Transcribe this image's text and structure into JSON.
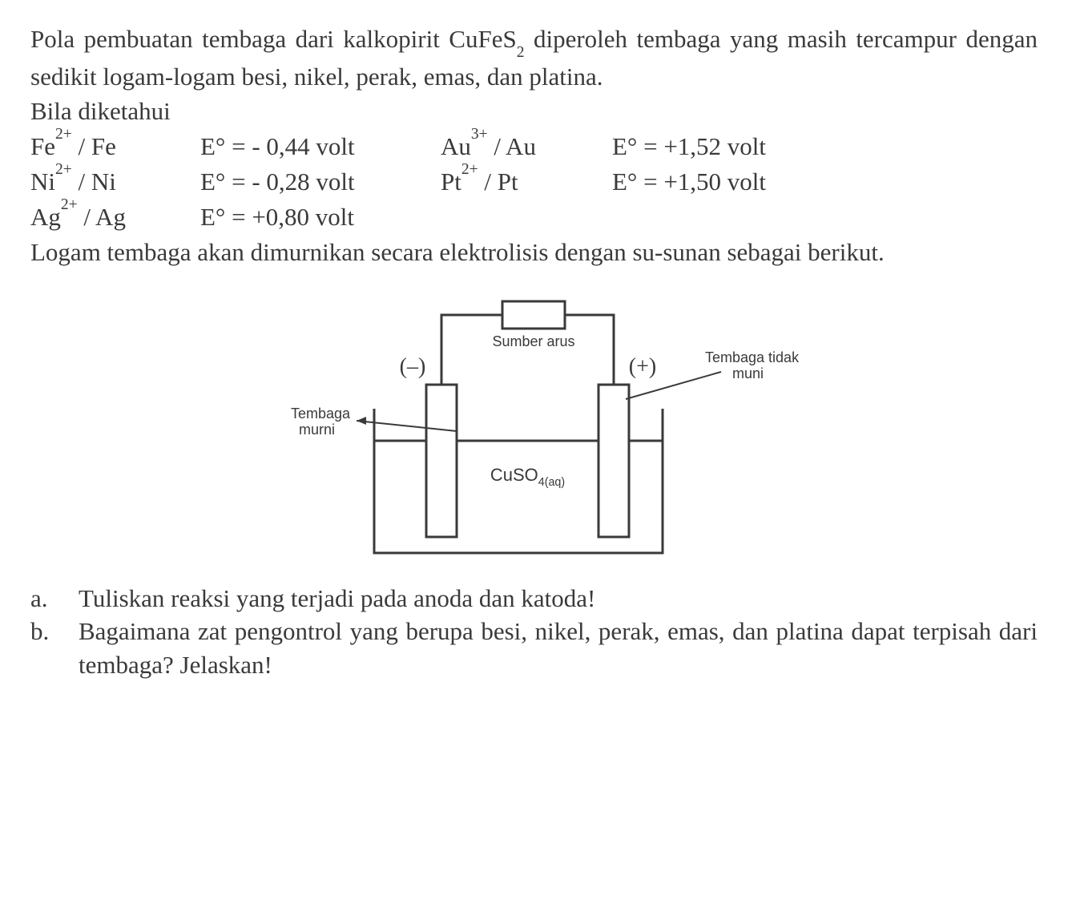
{
  "intro": {
    "line1": "Pola pembuatan tembaga dari kalkopirit CuFeS",
    "formula_sub": "2",
    "line1b": " diperoleh tembaga yang masih tercampur dengan sedikit logam-logam besi, nikel, perak, emas, dan platina.",
    "known_label": "Bila diketahui"
  },
  "equations": {
    "r1c1a": "Fe",
    "r1c1sup": "2+",
    "r1c1b": " / Fe",
    "r1c2": "E° = - 0,44 volt",
    "r1c3a": "Au",
    "r1c3sup": "3+",
    "r1c3b": " / Au",
    "r1c4": "E° = +1,52 volt",
    "r2c1a": "Ni",
    "r2c1sup": "2+",
    "r2c1b": " / Ni",
    "r2c2": "E° = - 0,28 volt",
    "r2c3a": "Pt",
    "r2c3sup": "2+",
    "r2c3b": " / Pt",
    "r2c4": "E° = +1,50 volt",
    "r3c1a": "Ag",
    "r3c1sup": "2+",
    "r3c1b": " / Ag",
    "r3c2": "E° = +0,80 volt"
  },
  "para2": "Logam tembaga akan dimurnikan secara elektrolisis dengan su-­sunan sebagai berikut.",
  "diagram": {
    "source_label": "Sumber arus",
    "minus": "(–)",
    "plus": "(+)",
    "impure_l1": "Tembaga tidak",
    "impure_l2": "muni",
    "pure_l1": "Tembaga",
    "pure_l2": "murni",
    "solution": "CuSO",
    "solution_sub": "4(aq)",
    "stroke_color": "#3a3a3a",
    "stroke_width": 3,
    "label_fontsize": 18,
    "paren_fontsize": 28,
    "solution_fontsize": 22
  },
  "questions": {
    "a_label": "a.",
    "a_text": "Tuliskan reaksi yang terjadi pada anoda dan katoda!",
    "b_label": "b.",
    "b_text": "Bagaimana zat pengontrol yang berupa besi, nikel, perak, emas, dan platina dapat terpisah dari tembaga? Jelaskan!"
  }
}
